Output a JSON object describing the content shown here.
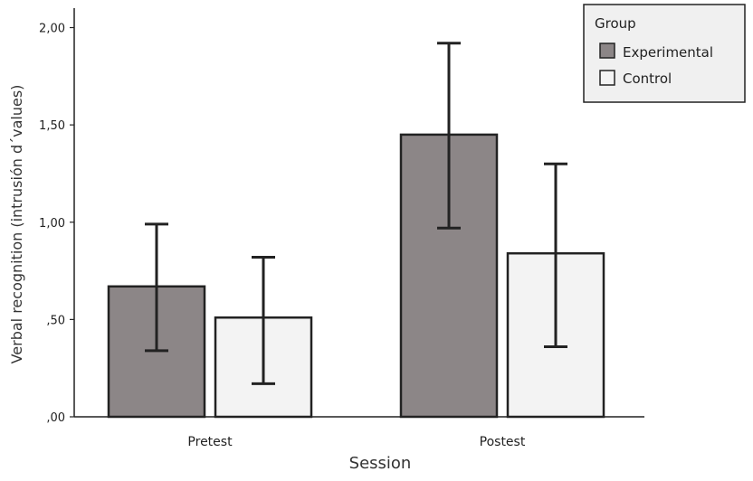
{
  "chart_data": {
    "type": "bar",
    "categories": [
      "Pretest",
      "Postest"
    ],
    "series": [
      {
        "name": "Experimental",
        "values": [
          0.67,
          1.45
        ],
        "err_low": [
          0.34,
          0.97
        ],
        "err_high": [
          0.99,
          1.92
        ],
        "color": "#8c8687"
      },
      {
        "name": "Control",
        "values": [
          0.51,
          0.84
        ],
        "err_low": [
          0.17,
          0.36
        ],
        "err_high": [
          0.82,
          1.3
        ],
        "color": "#f3f3f3"
      }
    ],
    "xlabel": "Session",
    "ylabel": "Verbal recognition (intrusión d´values)",
    "ylim": [
      0,
      2.1
    ],
    "yticks": [
      {
        "value": 0,
        "label": ",00"
      },
      {
        "value": 0.5,
        "label": ",50"
      },
      {
        "value": 1.0,
        "label": "1,00"
      },
      {
        "value": 1.5,
        "label": "1,50"
      },
      {
        "value": 2.0,
        "label": "2,00"
      }
    ],
    "legend": {
      "title": "Group",
      "placement": "top-right"
    },
    "grid": false,
    "error_bars": true
  }
}
